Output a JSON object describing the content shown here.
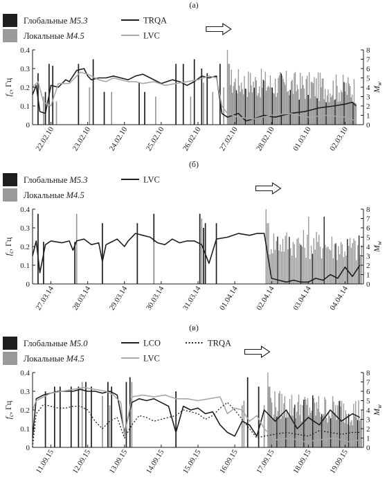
{
  "chart_data": [
    {
      "type": "line",
      "panel_label": "(а)",
      "ylabel": "fc, Гц",
      "ylabel_parts": {
        "sym": "f",
        "sub": "c",
        "unit": ", Гц"
      },
      "y2label": "Mw",
      "ylim": [
        0,
        0.4
      ],
      "y2lim": [
        0,
        8
      ],
      "yticks": [
        "0",
        "0.1",
        "0.2",
        "0.3",
        "0.4"
      ],
      "y2ticks": [
        "0",
        "1",
        "2",
        "3",
        "4",
        "5",
        "6",
        "7",
        "8"
      ],
      "xlim": [
        0,
        9
      ],
      "categories": [
        "22.02.10",
        "23.02.10",
        "24.02.10",
        "25.02.10",
        "26.02.10",
        "27.02.10",
        "28.02.10",
        "01.03.10",
        "02.03.10"
      ],
      "tick_positions": [
        0.5,
        1.5,
        2.5,
        3.5,
        4.5,
        5.5,
        6.5,
        7.5,
        8.5
      ],
      "legend_events": [
        {
          "label": "Глобальные ",
          "mag": "M5.3",
          "color": "#1e1e1e"
        },
        {
          "label": "Локальные ",
          "mag": "M4.5",
          "color": "#9a9a9a"
        }
      ],
      "arrow_x": 5.4,
      "series": [
        {
          "name": "TRQA",
          "color": "#1e1e1e",
          "width": 1.6,
          "x": [
            0,
            0.1,
            0.2,
            0.35,
            0.5,
            0.7,
            0.9,
            1.0,
            1.2,
            1.4,
            1.5,
            1.6,
            1.8,
            2.0,
            2.2,
            2.4,
            2.6,
            2.8,
            3.0,
            3.2,
            3.5,
            3.8,
            4.0,
            4.2,
            4.4,
            4.6,
            4.8,
            5.0,
            5.15,
            5.3,
            5.6,
            5.8,
            6.0,
            6.3,
            6.6,
            7.0,
            7.4,
            7.8,
            8.2,
            8.5,
            8.7,
            8.8
          ],
          "y": [
            0.16,
            0.21,
            0.07,
            0.06,
            0.21,
            0.2,
            0.24,
            0.23,
            0.29,
            0.3,
            0.26,
            0.24,
            0.25,
            0.25,
            0.26,
            0.25,
            0.24,
            0.26,
            0.27,
            0.25,
            0.22,
            0.24,
            0.23,
            0.21,
            0.23,
            0.26,
            0.25,
            0.26,
            0.06,
            0.04,
            0.06,
            0.02,
            0.03,
            0.05,
            0.04,
            0.06,
            0.07,
            0.09,
            0.1,
            0.11,
            0.12,
            0.1
          ]
        },
        {
          "name": "LVC",
          "color": "#a8a8a8",
          "width": 1.6,
          "x": [
            0,
            0.15,
            0.3,
            0.5,
            0.7,
            1.0,
            1.3,
            1.5,
            1.8,
            2.0,
            2.2,
            2.4,
            2.6,
            2.8,
            3.0,
            3.3,
            3.6,
            3.9,
            4.2,
            4.5,
            4.8,
            5.0,
            5.15,
            5.3,
            5.6,
            6.0,
            6.5,
            7.0,
            7.5,
            8.0,
            8.5,
            8.8
          ],
          "y": [
            0.2,
            0.23,
            0.12,
            0.1,
            0.22,
            0.22,
            0.28,
            0.27,
            0.24,
            0.23,
            0.25,
            0.24,
            0.23,
            0.23,
            0.22,
            0.23,
            0.21,
            0.22,
            0.23,
            0.24,
            0.26,
            0.25,
            0.1,
            0.06,
            0.04,
            0.03,
            0.05,
            0.06,
            0.04,
            0.05,
            0.04,
            0.02
          ]
        }
      ],
      "events": {
        "global_x": [
          0.15,
          0.35,
          0.45,
          0.55,
          1.25,
          1.65,
          1.95,
          2.9,
          3.05,
          3.9,
          4.1,
          4.4,
          4.6,
          4.75,
          5.1
        ],
        "global_m": [
          5.5,
          3.5,
          6.5,
          6.3,
          6.5,
          7.0,
          3.5,
          4.5,
          3.5,
          6.5,
          6.5,
          7.0,
          6.0,
          5.5,
          6.5
        ],
        "local_x": [
          0.3,
          0.65,
          1.55,
          2.15,
          3.35,
          4.3,
          4.65,
          4.9,
          5.2
        ],
        "local_m": [
          3.0,
          2.5,
          4.0,
          3.5,
          3.0,
          3.0,
          4.5,
          3.5,
          4.0
        ],
        "dense_range": [
          5.3,
          8.8
        ],
        "dense_count": 130
      }
    },
    {
      "type": "line",
      "panel_label": "(б)",
      "ylabel": "fc, Гц",
      "ylabel_parts": {
        "sym": "f",
        "sub": "c",
        "unit": ", Гц"
      },
      "y2label": "Mw",
      "ylim": [
        0,
        0.4
      ],
      "y2lim": [
        0,
        8
      ],
      "yticks": [
        "0",
        "0.1",
        "0.2",
        "0.3",
        "0.4"
      ],
      "y2ticks": [
        "0",
        "1",
        "2",
        "3",
        "4",
        "5",
        "6",
        "7",
        "8"
      ],
      "xlim": [
        0,
        9
      ],
      "categories": [
        "27.03.14",
        "28.03.14",
        "29.03.14",
        "30.03.14",
        "31.03.14",
        "01.04.14",
        "02.04.14",
        "03.04.14",
        "04.04.14"
      ],
      "tick_positions": [
        0.5,
        1.5,
        2.5,
        3.5,
        4.5,
        5.5,
        6.5,
        7.5,
        8.5
      ],
      "legend_events": [
        {
          "label": "Глобальные ",
          "mag": "M5.3",
          "color": "#1e1e1e"
        },
        {
          "label": "Локальные ",
          "mag": "M4.5",
          "color": "#9a9a9a"
        }
      ],
      "arrow_x": 6.75,
      "series": [
        {
          "name": "LVC",
          "color": "#1e1e1e",
          "width": 1.6,
          "x": [
            0,
            0.1,
            0.2,
            0.35,
            0.5,
            0.8,
            1.0,
            1.1,
            1.2,
            1.4,
            1.6,
            1.8,
            1.9,
            2.0,
            2.1,
            2.3,
            2.5,
            2.6,
            2.8,
            3.0,
            3.2,
            3.4,
            3.6,
            3.8,
            4.0,
            4.2,
            4.4,
            4.6,
            4.8,
            5.0,
            5.3,
            5.6,
            5.9,
            6.1,
            6.3,
            6.5,
            6.7,
            6.9,
            7.1,
            7.3,
            7.5,
            7.7,
            7.9,
            8.1,
            8.3,
            8.5,
            8.7,
            8.9
          ],
          "y": [
            0.15,
            0.23,
            0.06,
            0.21,
            0.23,
            0.22,
            0.23,
            0.18,
            0.23,
            0.24,
            0.21,
            0.22,
            0.12,
            0.21,
            0.22,
            0.24,
            0.2,
            0.23,
            0.27,
            0.26,
            0.25,
            0.22,
            0.21,
            0.24,
            0.22,
            0.23,
            0.23,
            0.21,
            0.11,
            0.24,
            0.25,
            0.27,
            0.26,
            0.27,
            0.27,
            0.03,
            0.02,
            0.01,
            0.02,
            0.01,
            0.01,
            0.03,
            0.02,
            0.05,
            0.03,
            0.09,
            0.04,
            0.1
          ]
        }
      ],
      "events": {
        "global_x": [
          0.15,
          0.3,
          1.15,
          1.9,
          2.85,
          3.3,
          4.55,
          4.65,
          4.7,
          5.0
        ],
        "global_m": [
          7.5,
          4.5,
          4.5,
          6.5,
          6.5,
          7.5,
          7.5,
          6.0,
          6.5,
          6.5
        ],
        "local_x": [
          1.2,
          3.3,
          4.6
        ],
        "local_m": [
          7.5,
          4.5,
          7.0
        ],
        "dense_range": [
          6.35,
          8.95
        ],
        "dense_count": 75
      }
    },
    {
      "type": "line",
      "panel_label": "(в)",
      "ylabel": "fc, Гц",
      "ylabel_parts": {
        "sym": "f",
        "sub": "c",
        "unit": ", Гц"
      },
      "y2label": "Mw",
      "ylim": [
        0,
        0.4
      ],
      "y2lim": [
        0,
        8
      ],
      "yticks": [
        "0",
        "0.1",
        "0.2",
        "0.3",
        "0.4"
      ],
      "y2ticks": [
        "0",
        "1",
        "2",
        "3",
        "4",
        "5",
        "6",
        "7",
        "8"
      ],
      "xlim": [
        0,
        9
      ],
      "categories": [
        "11.09.15",
        "12.09.15",
        "13.09.15",
        "14.09.15",
        "15.09.15",
        "16.09.15",
        "17.09.15",
        "18.09.15",
        "19.09.15"
      ],
      "tick_positions": [
        0.5,
        1.5,
        2.5,
        3.5,
        4.5,
        5.5,
        6.5,
        7.5,
        8.5
      ],
      "legend_events": [
        {
          "label": "Глобальные ",
          "mag": "M5.0",
          "color": "#1e1e1e"
        },
        {
          "label": "Локальные ",
          "mag": "M4.5",
          "color": "#9a9a9a"
        }
      ],
      "arrow_x": 6.45,
      "series": [
        {
          "name": "LCO",
          "color": "#1e1e1e",
          "width": 1.6,
          "x": [
            0,
            0.1,
            0.3,
            0.5,
            0.7,
            0.9,
            1.1,
            1.3,
            1.5,
            1.7,
            1.9,
            2.1,
            2.3,
            2.5,
            2.7,
            2.9,
            3.1,
            3.3,
            3.5,
            3.7,
            3.9,
            4.1,
            4.3,
            4.5,
            4.7,
            4.9,
            5.1,
            5.3,
            5.5,
            5.7,
            5.9,
            6.1,
            6.3,
            6.6,
            6.9,
            7.2,
            7.5,
            7.8,
            8.1,
            8.4,
            8.7,
            8.9
          ],
          "y": [
            0.05,
            0.26,
            0.28,
            0.29,
            0.3,
            0.3,
            0.3,
            0.31,
            0.3,
            0.3,
            0.29,
            0.3,
            0.28,
            0.08,
            0.24,
            0.26,
            0.25,
            0.26,
            0.24,
            0.22,
            0.08,
            0.22,
            0.2,
            0.21,
            0.18,
            0.19,
            0.12,
            0.08,
            0.06,
            0.14,
            0.12,
            0.06,
            0.2,
            0.14,
            0.2,
            0.1,
            0.16,
            0.12,
            0.2,
            0.14,
            0.18,
            0.16
          ]
        },
        {
          "name": "LVC",
          "color": "#a8a8a8",
          "width": 1.6,
          "x": [
            0,
            0.1,
            0.3,
            0.5,
            0.8,
            1.1,
            1.4,
            1.7,
            2.0,
            2.2,
            2.4,
            2.5,
            2.7,
            3.0,
            3.3,
            3.6,
            3.9,
            4.2,
            4.5,
            4.8,
            5.1,
            5.3,
            5.5,
            5.7,
            5.9,
            6.1,
            6.3,
            6.6,
            7.0,
            7.4,
            7.8,
            8.2,
            8.6,
            8.9
          ],
          "y": [
            0.2,
            0.25,
            0.27,
            0.29,
            0.3,
            0.31,
            0.32,
            0.31,
            0.3,
            0.28,
            0.24,
            0.06,
            0.27,
            0.28,
            0.27,
            0.28,
            0.26,
            0.26,
            0.25,
            0.26,
            0.27,
            0.18,
            0.21,
            0.2,
            0.14,
            0.17,
            0.1,
            0.04,
            0.05,
            0.03,
            0.04,
            0.05,
            0.03,
            0.04
          ]
        },
        {
          "name": "TRQA",
          "color": "#1e1e1e",
          "width": 1.3,
          "dash": "2,2.5",
          "x": [
            0,
            0.1,
            0.3,
            0.5,
            0.7,
            0.9,
            1.1,
            1.3,
            1.5,
            1.7,
            1.9,
            2.1,
            2.3,
            2.5,
            2.7,
            2.9,
            3.1,
            3.3,
            3.5,
            3.7,
            3.9,
            4.1,
            4.3,
            4.5,
            4.7,
            4.9,
            5.1,
            5.3,
            5.5,
            5.7,
            5.9,
            6.1,
            6.3,
            6.6,
            6.9,
            7.2,
            7.5,
            7.8,
            8.1,
            8.4,
            8.7,
            8.9
          ],
          "y": [
            0.0,
            0.18,
            0.23,
            0.22,
            0.21,
            0.21,
            0.22,
            0.22,
            0.2,
            0.14,
            0.1,
            0.14,
            0.16,
            0.05,
            0.12,
            0.17,
            0.16,
            0.14,
            0.15,
            0.16,
            0.17,
            0.2,
            0.19,
            0.18,
            0.15,
            0.17,
            0.21,
            0.24,
            0.2,
            0.15,
            0.1,
            0.05,
            0.06,
            0.07,
            0.08,
            0.07,
            0.06,
            0.09,
            0.08,
            0.07,
            0.08,
            0.08
          ]
        }
      ],
      "events": {
        "global_x": [
          0.35,
          0.6,
          0.75,
          1.05,
          1.25,
          1.45,
          1.6,
          2.05,
          2.15,
          2.55,
          2.65,
          3.9,
          5.85,
          6.15
        ],
        "global_m": [
          6.0,
          6.5,
          6.5,
          6.5,
          6.5,
          7.0,
          6.5,
          7.0,
          6.5,
          7.0,
          7.5,
          6.0,
          7.5,
          6.5
        ],
        "local_x": [
          1.35,
          1.9,
          2.1,
          2.7,
          5.7,
          5.75,
          6.3
        ],
        "local_m": [
          7.0,
          5.5,
          4.5,
          7.0,
          4.5,
          5.0,
          4.5
        ],
        "dense_range": [
          6.4,
          8.95
        ],
        "dense_count": 95
      }
    }
  ]
}
